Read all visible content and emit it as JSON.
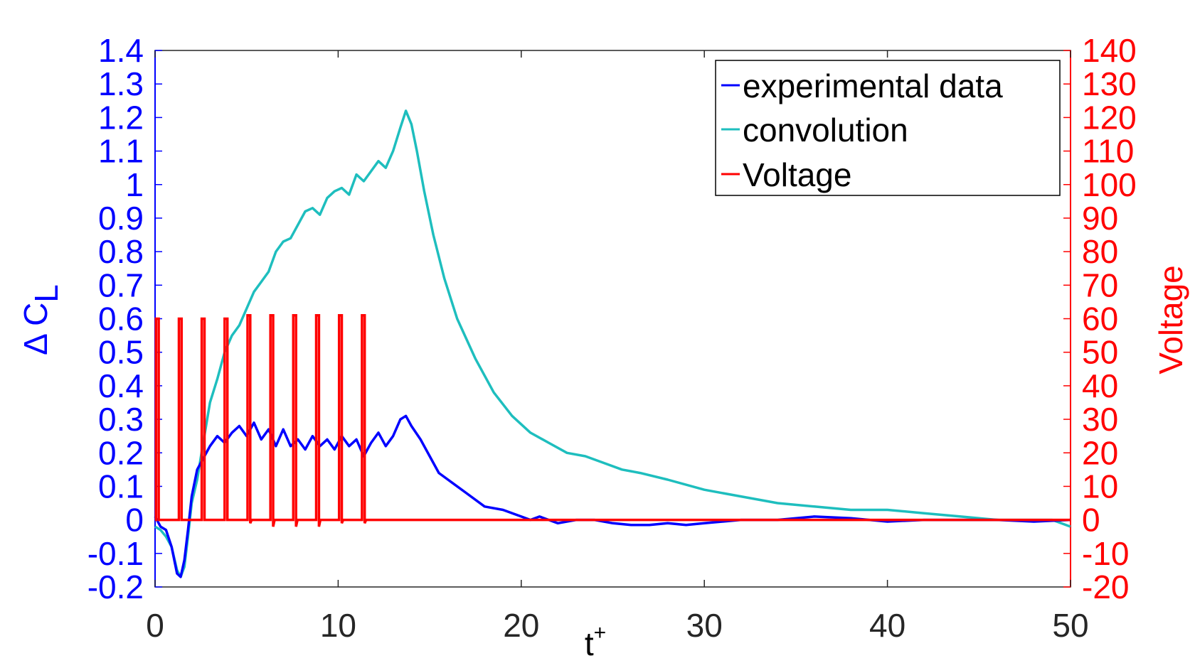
{
  "chart_data": {
    "type": "line",
    "title": "",
    "xlabel": "t",
    "xlabel_superscript": "+",
    "ylabel_left": "Δ C",
    "ylabel_left_subscript": "L",
    "ylabel_right": "Voltage",
    "xlim": [
      0,
      50
    ],
    "ylim_left": [
      -0.2,
      1.4
    ],
    "ylim_right": [
      -20,
      140
    ],
    "x_ticks": [
      "0",
      "10",
      "20",
      "30",
      "40",
      "50"
    ],
    "y_left_ticks": [
      "1.4",
      "1.3",
      "1.2",
      "1.1",
      "1",
      "0.9",
      "0.8",
      "0.7",
      "0.6",
      "0.5",
      "0.4",
      "0.3",
      "0.2",
      "0.1",
      "0",
      "-0.1",
      "-0.2"
    ],
    "y_right_ticks": [
      "140",
      "130",
      "120",
      "110",
      "100",
      "90",
      "80",
      "70",
      "60",
      "50",
      "40",
      "30",
      "20",
      "10",
      "0",
      "-10",
      "-20"
    ],
    "grid": false,
    "legend_position": "top-right",
    "legend": [
      "experimental data",
      "convolution",
      "Voltage"
    ],
    "colors": {
      "experimental": "#0000ff",
      "convolution": "#1ebebe",
      "voltage": "#ff0000",
      "left_axis": "#0000ff",
      "right_axis": "#ff0000",
      "x_axis": "#262626"
    },
    "series": [
      {
        "name": "experimental data",
        "axis": "left",
        "x": [
          0,
          0.3,
          0.6,
          0.9,
          1.2,
          1.4,
          1.6,
          1.8,
          2.0,
          2.3,
          2.6,
          3.0,
          3.4,
          3.8,
          4.2,
          4.6,
          5.0,
          5.4,
          5.8,
          6.2,
          6.6,
          7.0,
          7.4,
          7.8,
          8.2,
          8.6,
          9.0,
          9.4,
          9.8,
          10.2,
          10.6,
          11.0,
          11.4,
          11.8,
          12.2,
          12.6,
          13.0,
          13.4,
          13.7,
          14.0,
          14.5,
          15.0,
          15.5,
          16.0,
          17.0,
          18.0,
          19.0,
          20.0,
          20.5,
          21.0,
          22.0,
          23.0,
          24.0,
          25.0,
          26.0,
          27.0,
          28.0,
          29.0,
          30.0,
          32.0,
          34.0,
          36.0,
          38.0,
          40.0,
          42.0,
          44.0,
          46.0,
          48.0,
          50.0
        ],
        "values": [
          0.01,
          -0.02,
          -0.03,
          -0.08,
          -0.16,
          -0.17,
          -0.12,
          -0.03,
          0.07,
          0.15,
          0.18,
          0.22,
          0.25,
          0.23,
          0.26,
          0.28,
          0.25,
          0.29,
          0.24,
          0.27,
          0.22,
          0.27,
          0.22,
          0.24,
          0.21,
          0.25,
          0.22,
          0.24,
          0.21,
          0.25,
          0.22,
          0.24,
          0.19,
          0.23,
          0.26,
          0.22,
          0.25,
          0.3,
          0.31,
          0.28,
          0.24,
          0.19,
          0.14,
          0.12,
          0.08,
          0.04,
          0.03,
          0.01,
          0.0,
          0.01,
          -0.01,
          0.0,
          0.0,
          -0.01,
          -0.015,
          -0.015,
          -0.01,
          -0.015,
          -0.01,
          0.0,
          0.0,
          0.01,
          0.005,
          -0.005,
          0.0,
          0.0,
          0.0,
          -0.005,
          0.0
        ]
      },
      {
        "name": "convolution",
        "axis": "left",
        "x": [
          0,
          0.3,
          0.6,
          0.9,
          1.2,
          1.4,
          1.6,
          1.8,
          2.0,
          2.3,
          2.6,
          3.0,
          3.4,
          3.8,
          4.2,
          4.6,
          5.0,
          5.4,
          5.8,
          6.2,
          6.6,
          7.0,
          7.4,
          7.8,
          8.2,
          8.6,
          9.0,
          9.4,
          9.8,
          10.2,
          10.6,
          11.0,
          11.4,
          11.8,
          12.2,
          12.6,
          13.0,
          13.4,
          13.7,
          14.0,
          14.3,
          14.7,
          15.2,
          15.8,
          16.5,
          17.5,
          18.5,
          19.5,
          20.5,
          21.5,
          22.5,
          23.5,
          24.5,
          25.5,
          26.5,
          28.0,
          30.0,
          32.0,
          34.0,
          36.0,
          38.0,
          40.0,
          42.0,
          44.0,
          46.0,
          47.0,
          48.0,
          49.0,
          50.0
        ],
        "values": [
          -0.02,
          -0.03,
          -0.05,
          -0.08,
          -0.15,
          -0.17,
          -0.14,
          -0.05,
          0.05,
          0.12,
          0.22,
          0.35,
          0.42,
          0.5,
          0.55,
          0.58,
          0.63,
          0.68,
          0.71,
          0.74,
          0.8,
          0.83,
          0.84,
          0.88,
          0.92,
          0.93,
          0.91,
          0.96,
          0.98,
          0.99,
          0.97,
          1.03,
          1.01,
          1.04,
          1.07,
          1.05,
          1.1,
          1.17,
          1.22,
          1.18,
          1.1,
          0.98,
          0.85,
          0.72,
          0.6,
          0.48,
          0.38,
          0.31,
          0.26,
          0.23,
          0.2,
          0.19,
          0.17,
          0.15,
          0.14,
          0.12,
          0.09,
          0.07,
          0.05,
          0.04,
          0.03,
          0.03,
          0.02,
          0.01,
          0.0,
          0.0,
          0.0,
          0.0,
          -0.02
        ]
      },
      {
        "name": "Voltage",
        "axis": "right",
        "pulse_start": [
          0.05,
          1.3,
          2.55,
          3.8,
          5.05,
          6.3,
          7.55,
          8.8,
          10.05,
          11.3
        ],
        "pulse_width": 0.15,
        "pulse_high": [
          60,
          60,
          60,
          60,
          61,
          61,
          61,
          61,
          61,
          61
        ],
        "pulse_undershoot": [
          0,
          0,
          0,
          0,
          -1,
          -2,
          -2,
          -2,
          -1,
          -1
        ],
        "baseline": 0
      }
    ]
  }
}
